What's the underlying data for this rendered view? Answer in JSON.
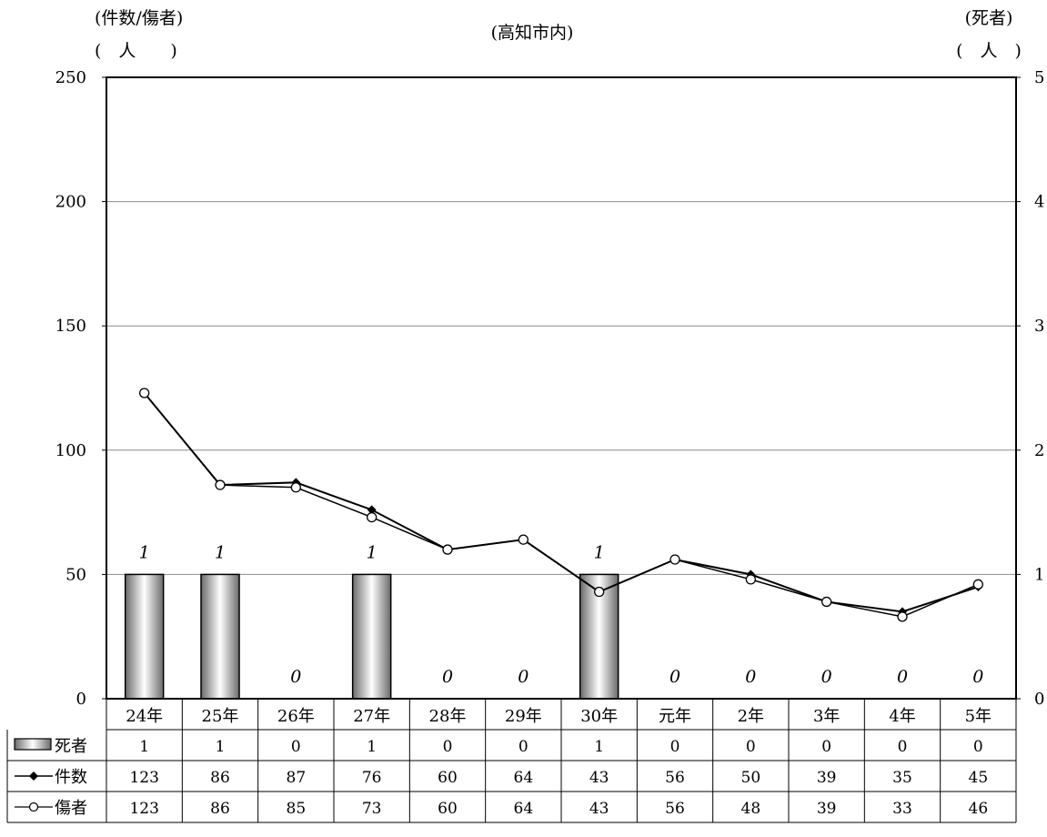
{
  "chart_data": {
    "type": "bar",
    "title": "(高知市内)",
    "y_left_unit_top": "(件数/傷者)",
    "y_left_unit_bottom": "(　人　　)",
    "y_right_unit_top": "(死者)",
    "y_right_unit_bottom": "(　人　)",
    "y_left_ticks": [
      "0",
      "50",
      "100",
      "150",
      "200",
      "250"
    ],
    "y_right_ticks": [
      "0",
      "1",
      "2",
      "3",
      "4",
      "5"
    ],
    "ylim_left": [
      0,
      250
    ],
    "ylim_right": [
      0,
      5
    ],
    "grid": true,
    "categories": [
      "24年",
      "25年",
      "26年",
      "27年",
      "28年",
      "29年",
      "30年",
      "元年",
      "2年",
      "3年",
      "4年",
      "5年"
    ],
    "series": [
      {
        "name": "死者",
        "type": "bar",
        "axis": "right",
        "values": [
          1,
          1,
          0,
          1,
          0,
          0,
          1,
          0,
          0,
          0,
          0,
          0
        ]
      },
      {
        "name": "件数",
        "type": "line",
        "axis": "left",
        "marker": "diamond",
        "values": [
          123,
          86,
          87,
          76,
          60,
          64,
          43,
          56,
          50,
          39,
          35,
          45
        ]
      },
      {
        "name": "傷者",
        "type": "line",
        "axis": "left",
        "marker": "circle",
        "values": [
          123,
          86,
          85,
          73,
          60,
          64,
          43,
          56,
          48,
          39,
          33,
          46
        ]
      }
    ],
    "bar_labels": [
      "1",
      "1",
      "0",
      "1",
      "0",
      "0",
      "1",
      "0",
      "0",
      "0",
      "0",
      "0"
    ],
    "table": {
      "rows": [
        [
          "1",
          "1",
          "0",
          "1",
          "0",
          "0",
          "1",
          "0",
          "0",
          "0",
          "0",
          "0"
        ],
        [
          "123",
          "86",
          "87",
          "76",
          "60",
          "64",
          "43",
          "56",
          "50",
          "39",
          "35",
          "45"
        ],
        [
          "123",
          "86",
          "85",
          "73",
          "60",
          "64",
          "43",
          "56",
          "48",
          "39",
          "33",
          "46"
        ]
      ]
    }
  }
}
